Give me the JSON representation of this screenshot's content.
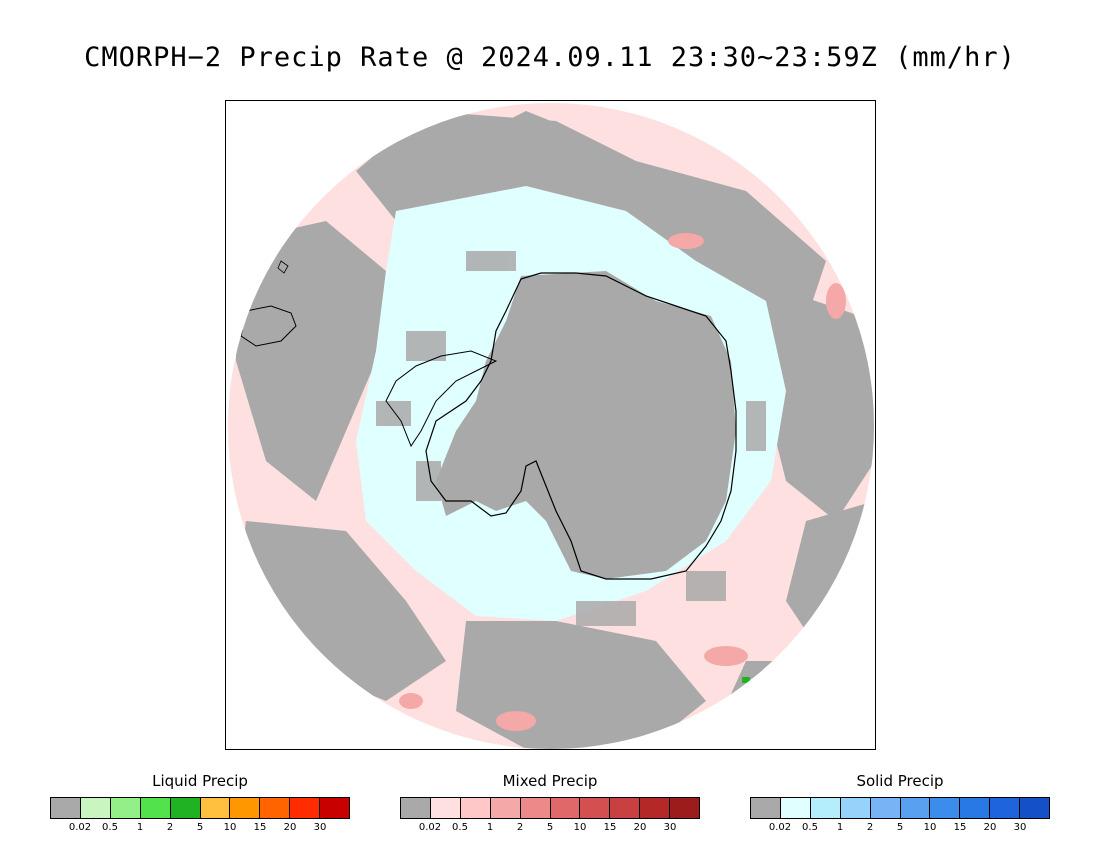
{
  "title": "CMORPH−2 Precip Rate @ 2024.09.11 23:30~23:59Z (mm/hr)",
  "map": {
    "projection": "south polar stereographic",
    "colors": {
      "no_data_gray": "#a9a9a9",
      "mixed_light": "#ffe0e0",
      "solid_light": "#e0ffff",
      "coastline": "#000000"
    }
  },
  "legends": [
    {
      "title": "Liquid Precip",
      "ticks": [
        "0.02",
        "0.5",
        "1",
        "2",
        "5",
        "10",
        "15",
        "20",
        "30"
      ],
      "colors": [
        "#a9a9a9",
        "#c8f5c0",
        "#95ef89",
        "#52e24c",
        "#20b222",
        "#ffc040",
        "#ff9800",
        "#ff6400",
        "#ff2c00",
        "#c80000"
      ]
    },
    {
      "title": "Mixed Precip",
      "ticks": [
        "0.02",
        "0.5",
        "1",
        "2",
        "5",
        "10",
        "15",
        "20",
        "30"
      ],
      "colors": [
        "#a9a9a9",
        "#ffe0e0",
        "#ffc8c8",
        "#f5a8a8",
        "#ec8a8a",
        "#e06868",
        "#d45050",
        "#c84040",
        "#b42828",
        "#9c1c1c"
      ]
    },
    {
      "title": "Solid Precip",
      "ticks": [
        "0.02",
        "0.5",
        "1",
        "2",
        "5",
        "10",
        "15",
        "20",
        "30"
      ],
      "colors": [
        "#a9a9a9",
        "#e0ffff",
        "#b4eefc",
        "#96d2fa",
        "#78b4f5",
        "#5aa0f0",
        "#3c8cec",
        "#2878e6",
        "#1e64dc",
        "#1450c8"
      ]
    }
  ]
}
